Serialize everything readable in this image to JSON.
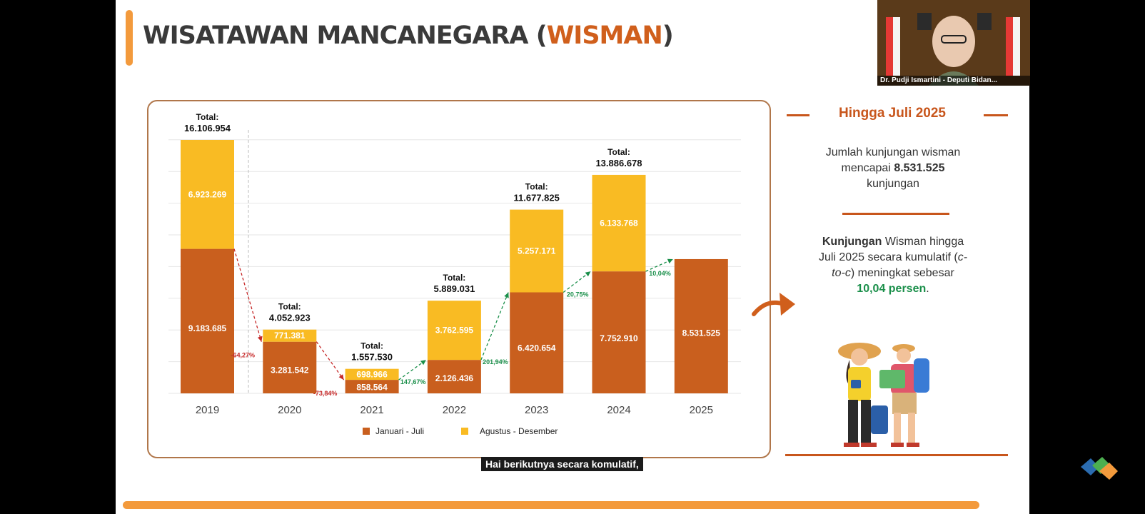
{
  "slide": {
    "title_prefix": "WISATAWAN MANCANEGARA (",
    "title_accent": "WISMAN",
    "title_suffix": ")"
  },
  "sidebar": {
    "heading": "Hingga Juli 2025",
    "p1_a": "Jumlah kunjungan wisman",
    "p1_b": "mencapai",
    "p1_value": "8.531.525",
    "p1_c": "kunjungan",
    "p2_bold": "Kunjungan",
    "p2_a": " Wisman hingga",
    "p2_b": "Juli 2025 secara kumulatif  (",
    "p2_italic1": "c-",
    "p2_italic2": "to-c",
    "p2_c": ") meningkat sebesar",
    "p2_value": "10,04 persen",
    "p2_end": "."
  },
  "caption": "Hai berikutnya secara komulatif,",
  "webcam": {
    "name_label": "Dr. Pudji Ismartini - Deputi Bidan..."
  },
  "colors": {
    "jan_jul": "#c95f1e",
    "aug_dec": "#f9bb23",
    "accent": "#f39a3c",
    "decline": "#c62828",
    "growth": "#1a8f4a"
  },
  "chart_data": {
    "type": "bar",
    "stacked": true,
    "categories": [
      "2019",
      "2020",
      "2021",
      "2022",
      "2023",
      "2024",
      "2025"
    ],
    "series": [
      {
        "name": "Januari - Juli",
        "values": [
          9183685,
          3281542,
          858564,
          2126436,
          6420654,
          7752910,
          8531525
        ],
        "labels": [
          "9.183.685",
          "3.281.542",
          "858.564",
          "2.126.436",
          "6.420.654",
          "7.752.910",
          "8.531.525"
        ]
      },
      {
        "name": "Agustus - Desember",
        "values": [
          6923269,
          771381,
          698966,
          3762595,
          5257171,
          6133768,
          null
        ],
        "labels": [
          "6.923.269",
          "771.381",
          "698.966",
          "3.762.595",
          "5.257.171",
          "6.133.768",
          ""
        ]
      }
    ],
    "totals_label": "Total:",
    "totals": [
      "16.106.954",
      "4.052.923",
      "1.557.530",
      "5.889.031",
      "11.677.825",
      "13.886.678",
      ""
    ],
    "growth": [
      {
        "from": 0,
        "to": 1,
        "label": "-64,27%",
        "kind": "decline"
      },
      {
        "from": 1,
        "to": 2,
        "label": "-73,84%",
        "kind": "decline"
      },
      {
        "from": 2,
        "to": 3,
        "label": "147,67%",
        "kind": "growth"
      },
      {
        "from": 3,
        "to": 4,
        "label": "201,94%",
        "kind": "growth"
      },
      {
        "from": 4,
        "to": 5,
        "label": "20,75%",
        "kind": "growth"
      },
      {
        "from": 5,
        "to": 6,
        "label": "10,04%",
        "kind": "growth"
      }
    ],
    "ylim": [
      0,
      16106954
    ],
    "grid": true,
    "legend_position": "bottom"
  }
}
